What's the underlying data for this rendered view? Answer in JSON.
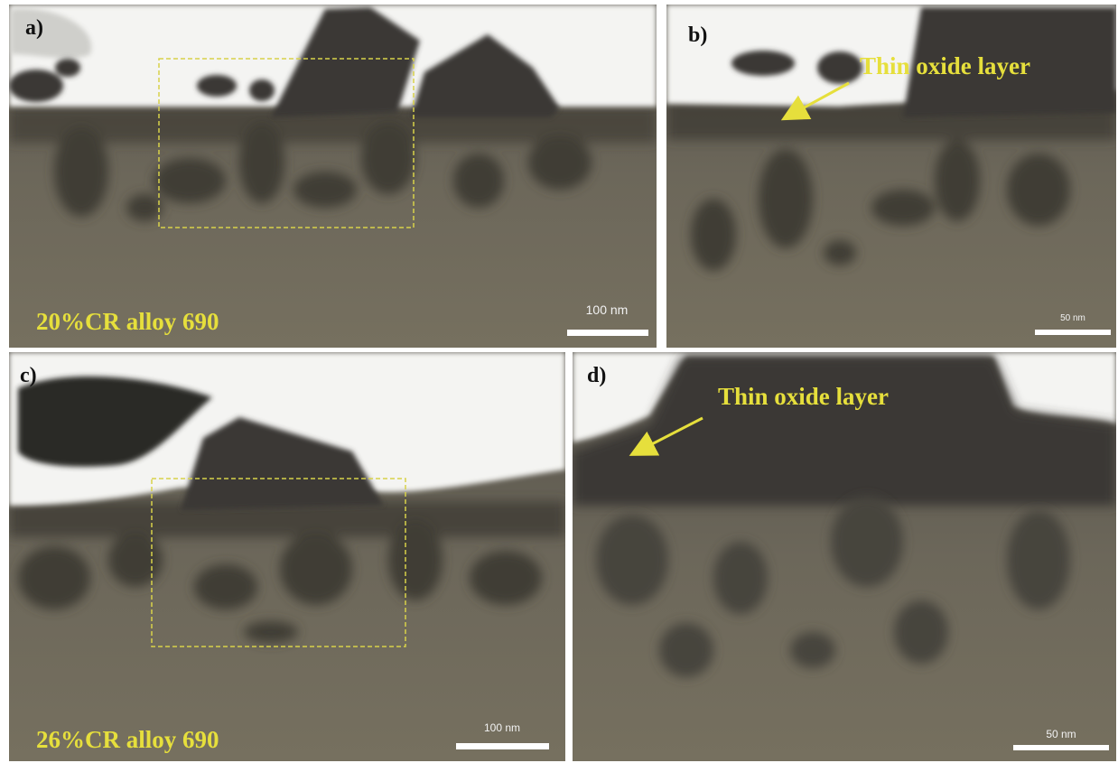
{
  "panels": [
    {
      "label": "a)",
      "sample": "20%CR alloy 690",
      "scale_bar": "100 nm"
    },
    {
      "label": "b)",
      "annotation": "Thin oxide layer",
      "scale_bar": "50 nm"
    },
    {
      "label": "c)",
      "sample": "26%CR alloy 690",
      "scale_bar": "100 nm"
    },
    {
      "label": "d)",
      "annotation": "Thin oxide layer",
      "scale_bar": "50 nm"
    }
  ]
}
